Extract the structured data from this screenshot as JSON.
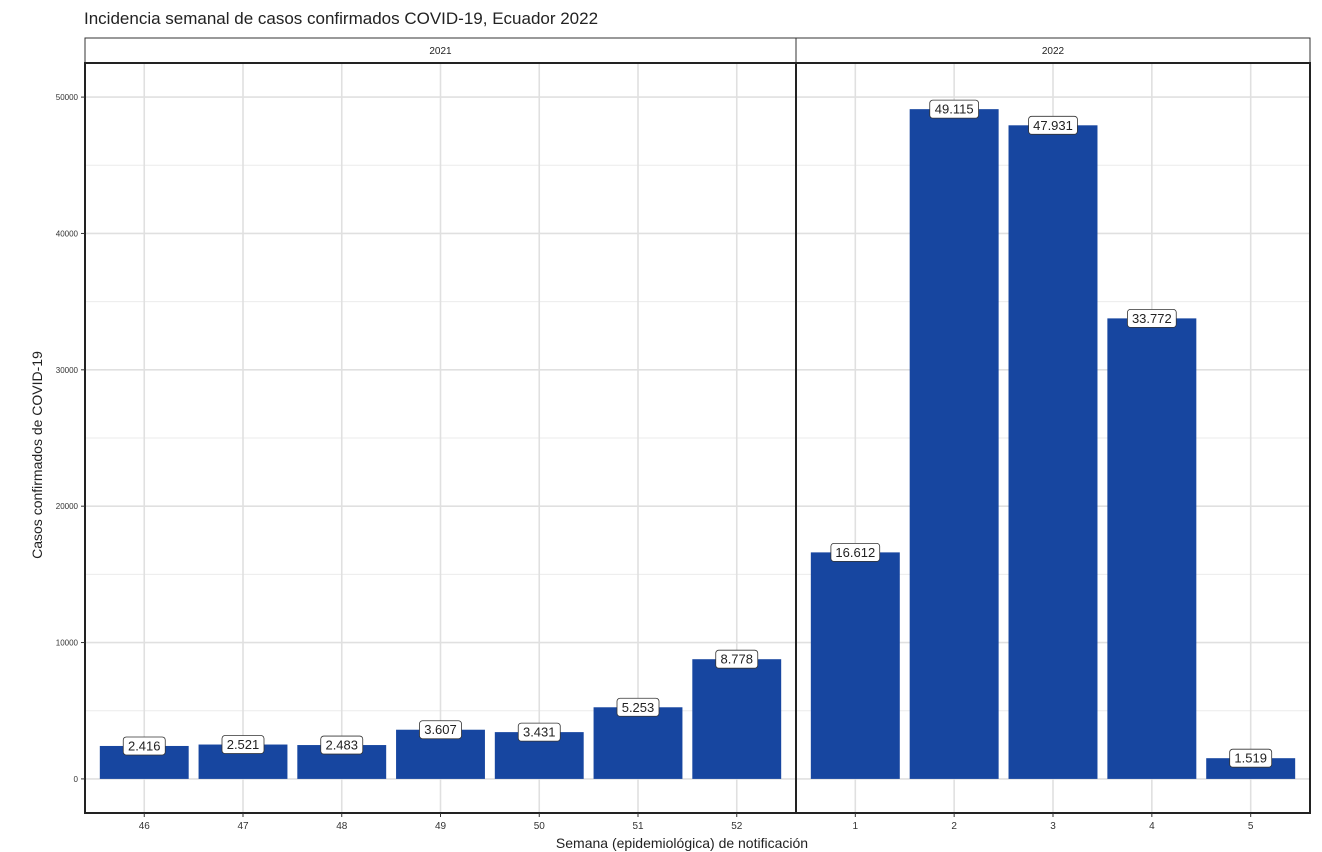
{
  "chart_data": {
    "type": "bar",
    "title": "Incidencia semanal de casos confirmados COVID-19, Ecuador 2022",
    "xlabel": "Semana (epidemiológica) de notificación",
    "ylabel": "Casos confirmados de COVID-19",
    "ylim": [
      -2500,
      52500
    ],
    "y_ticks": [
      0,
      10000,
      20000,
      30000,
      40000,
      50000
    ],
    "grid": true,
    "bar_color": "#1746A0",
    "facets": [
      {
        "label": "2021",
        "categories": [
          "46",
          "47",
          "48",
          "49",
          "50",
          "51",
          "52"
        ],
        "values": [
          2416,
          2521,
          2483,
          3607,
          3431,
          5253,
          8778
        ],
        "value_labels": [
          "2.416",
          "2.521",
          "2.483",
          "3.607",
          "3.431",
          "5.253",
          "8.778"
        ]
      },
      {
        "label": "2022",
        "categories": [
          "1",
          "2",
          "3",
          "4",
          "5"
        ],
        "values": [
          16612,
          49115,
          47931,
          33772,
          1519
        ],
        "value_labels": [
          "16.612",
          "49.115",
          "47.931",
          "33.772",
          "1.519"
        ]
      }
    ]
  }
}
